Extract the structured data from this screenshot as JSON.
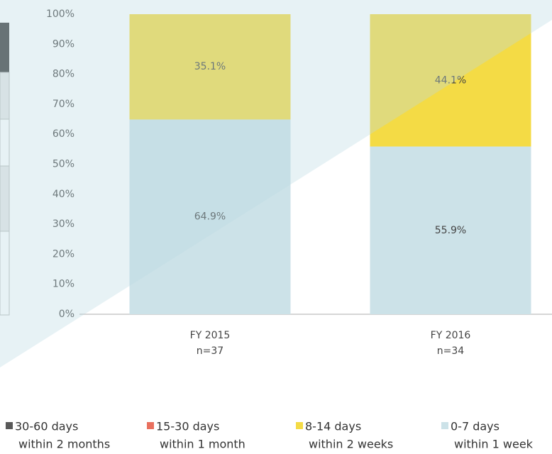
{
  "chart_data": {
    "type": "stacked_bar",
    "categories": [
      "FY 2015",
      "FY 2016"
    ],
    "category_notes": [
      "n=37",
      "n=34"
    ],
    "ylim": [
      0,
      100
    ],
    "yticks": [
      {
        "value": 0,
        "label": "0%"
      },
      {
        "value": 10,
        "label": "10%"
      },
      {
        "value": 20,
        "label": "20%"
      },
      {
        "value": 30,
        "label": "30%"
      },
      {
        "value": 40,
        "label": "40%"
      },
      {
        "value": 50,
        "label": "50%"
      },
      {
        "value": 60,
        "label": "60%"
      },
      {
        "value": 70,
        "label": "70%"
      },
      {
        "value": 80,
        "label": "80%"
      },
      {
        "value": 90,
        "label": "90%"
      },
      {
        "value": 100,
        "label": "100%"
      }
    ],
    "series": [
      {
        "name": "0-7 days",
        "description": "within 1 week",
        "color": "#cce2e8",
        "values": [
          64.9,
          55.9
        ],
        "value_labels": [
          "64.9%",
          "55.9%"
        ]
      },
      {
        "name": "8-14 days",
        "description": "within 2 weeks",
        "color": "#f4db45",
        "values": [
          35.1,
          44.1
        ],
        "value_labels": [
          "35.1%",
          "44.1%"
        ]
      },
      {
        "name": "15-30 days",
        "description": "within 1 month",
        "color": "#e9705e",
        "values": [
          0,
          0
        ]
      },
      {
        "name": "30-60 days",
        "description": "within 2 months",
        "color": "#595959",
        "values": [
          0,
          0
        ]
      }
    ],
    "legend_order": [
      3,
      2,
      1,
      0
    ]
  }
}
